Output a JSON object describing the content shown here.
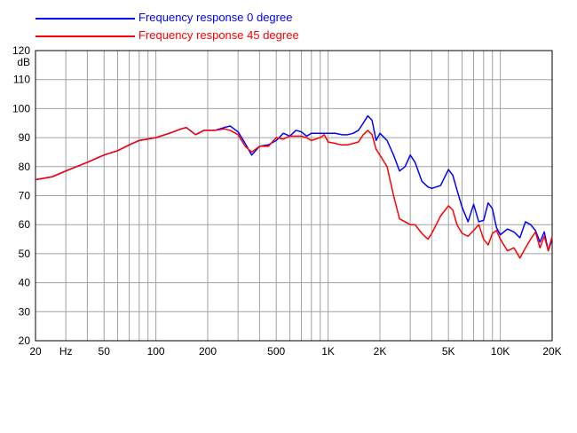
{
  "chart_data": {
    "type": "line",
    "xscale": "log",
    "xlim": [
      20,
      20000
    ],
    "ylim": [
      20,
      120
    ],
    "grid": true,
    "legend_placement": "top-left",
    "y_unit": "dB",
    "x_unit": "Hz",
    "xticks": [
      {
        "value": 20,
        "label": "20"
      },
      {
        "value": 30,
        "label": "Hz"
      },
      {
        "value": 50,
        "label": "50"
      },
      {
        "value": 100,
        "label": "100"
      },
      {
        "value": 200,
        "label": "200"
      },
      {
        "value": 500,
        "label": "500"
      },
      {
        "value": 1000,
        "label": "1K"
      },
      {
        "value": 2000,
        "label": "2K"
      },
      {
        "value": 5000,
        "label": "5K"
      },
      {
        "value": 10000,
        "label": "10K"
      },
      {
        "value": 20000,
        "label": "20K"
      }
    ],
    "yticks": [
      20,
      30,
      40,
      50,
      60,
      70,
      80,
      90,
      100,
      110,
      120
    ],
    "series": [
      {
        "name": "Frequency response 0 degree",
        "color": "#0000ff",
        "points": [
          [
            20,
            75.5
          ],
          [
            25,
            76.5
          ],
          [
            30,
            78.5
          ],
          [
            40,
            81.5
          ],
          [
            50,
            84
          ],
          [
            60,
            85.5
          ],
          [
            70,
            87.5
          ],
          [
            80,
            89
          ],
          [
            100,
            90
          ],
          [
            120,
            91.5
          ],
          [
            140,
            93
          ],
          [
            150,
            93.5
          ],
          [
            170,
            91
          ],
          [
            190,
            92.5
          ],
          [
            220,
            92.5
          ],
          [
            250,
            93.5
          ],
          [
            270,
            94
          ],
          [
            300,
            92
          ],
          [
            330,
            88
          ],
          [
            360,
            84
          ],
          [
            400,
            87
          ],
          [
            450,
            87.5
          ],
          [
            500,
            89
          ],
          [
            550,
            91.5
          ],
          [
            600,
            90.5
          ],
          [
            650,
            92.5
          ],
          [
            700,
            92
          ],
          [
            750,
            90.5
          ],
          [
            800,
            91.5
          ],
          [
            900,
            91.5
          ],
          [
            1000,
            91.5
          ],
          [
            1100,
            91.5
          ],
          [
            1200,
            91
          ],
          [
            1300,
            91
          ],
          [
            1400,
            91.5
          ],
          [
            1500,
            92.5
          ],
          [
            1600,
            95
          ],
          [
            1700,
            97.5
          ],
          [
            1800,
            96
          ],
          [
            1900,
            89
          ],
          [
            2000,
            91.5
          ],
          [
            2200,
            89
          ],
          [
            2400,
            84
          ],
          [
            2600,
            78.5
          ],
          [
            2800,
            80
          ],
          [
            3000,
            84
          ],
          [
            3200,
            81.5
          ],
          [
            3500,
            75
          ],
          [
            3800,
            73
          ],
          [
            4000,
            72.5
          ],
          [
            4500,
            73.5
          ],
          [
            5000,
            79
          ],
          [
            5300,
            77
          ],
          [
            5600,
            72
          ],
          [
            6000,
            66
          ],
          [
            6500,
            61
          ],
          [
            7000,
            67
          ],
          [
            7500,
            61
          ],
          [
            8000,
            61.5
          ],
          [
            8500,
            67.5
          ],
          [
            9000,
            65.5
          ],
          [
            9500,
            59
          ],
          [
            10000,
            56.5
          ],
          [
            11000,
            58.5
          ],
          [
            12000,
            57.5
          ],
          [
            13000,
            55.5
          ],
          [
            14000,
            61
          ],
          [
            15000,
            60
          ],
          [
            16000,
            58
          ],
          [
            17000,
            54
          ],
          [
            18000,
            57.5
          ],
          [
            19000,
            51
          ],
          [
            20000,
            55
          ]
        ]
      },
      {
        "name": "Frequency response 45 degree",
        "color": "#ff0000",
        "points": [
          [
            20,
            75.5
          ],
          [
            25,
            76.5
          ],
          [
            30,
            78.5
          ],
          [
            40,
            81.5
          ],
          [
            50,
            84
          ],
          [
            60,
            85.5
          ],
          [
            70,
            87.5
          ],
          [
            80,
            89
          ],
          [
            100,
            90
          ],
          [
            120,
            91.5
          ],
          [
            140,
            93
          ],
          [
            150,
            93.5
          ],
          [
            170,
            91
          ],
          [
            190,
            92.5
          ],
          [
            220,
            92.5
          ],
          [
            250,
            93
          ],
          [
            270,
            92.5
          ],
          [
            300,
            91
          ],
          [
            330,
            87
          ],
          [
            360,
            85
          ],
          [
            400,
            87
          ],
          [
            450,
            87
          ],
          [
            500,
            90
          ],
          [
            550,
            89.5
          ],
          [
            600,
            90.5
          ],
          [
            650,
            90.5
          ],
          [
            700,
            90.5
          ],
          [
            750,
            90
          ],
          [
            800,
            89
          ],
          [
            900,
            90
          ],
          [
            950,
            91
          ],
          [
            1000,
            88.5
          ],
          [
            1100,
            88
          ],
          [
            1200,
            87.5
          ],
          [
            1300,
            87.5
          ],
          [
            1400,
            88
          ],
          [
            1500,
            88.5
          ],
          [
            1600,
            91
          ],
          [
            1700,
            92.5
          ],
          [
            1800,
            91
          ],
          [
            1900,
            86
          ],
          [
            2000,
            84
          ],
          [
            2200,
            80
          ],
          [
            2400,
            70
          ],
          [
            2600,
            62
          ],
          [
            2800,
            61
          ],
          [
            3000,
            60
          ],
          [
            3200,
            60
          ],
          [
            3500,
            57
          ],
          [
            3800,
            55
          ],
          [
            4000,
            57
          ],
          [
            4500,
            63
          ],
          [
            5000,
            66.5
          ],
          [
            5300,
            65
          ],
          [
            5600,
            60
          ],
          [
            6000,
            57
          ],
          [
            6500,
            56
          ],
          [
            7000,
            58
          ],
          [
            7500,
            60
          ],
          [
            8000,
            55
          ],
          [
            8500,
            53
          ],
          [
            9000,
            57
          ],
          [
            9500,
            58
          ],
          [
            10000,
            55
          ],
          [
            11000,
            51
          ],
          [
            12000,
            52
          ],
          [
            13000,
            48.5
          ],
          [
            14000,
            52
          ],
          [
            15000,
            55
          ],
          [
            16000,
            57.5
          ],
          [
            17000,
            52
          ],
          [
            18000,
            56
          ],
          [
            19000,
            51
          ],
          [
            20000,
            56
          ]
        ]
      }
    ]
  }
}
